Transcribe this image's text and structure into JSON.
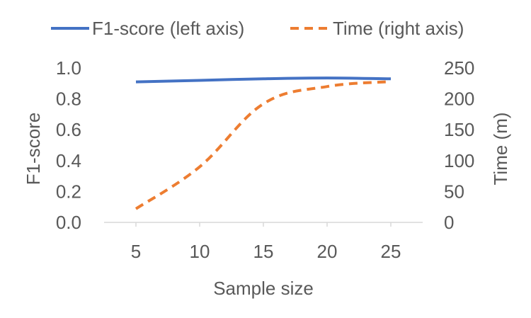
{
  "chart_data": {
    "type": "line",
    "title": "",
    "xlabel": "Sample size",
    "ylabel_left": "F1-score",
    "ylabel_right": "Time (m)",
    "x": [
      5,
      10,
      15,
      20,
      25
    ],
    "x_ticks": [
      "5",
      "10",
      "15",
      "20",
      "25"
    ],
    "xlim": [
      2.5,
      27.5
    ],
    "ylim_left": [
      0,
      1.0
    ],
    "ylim_right": [
      0,
      250
    ],
    "y_left_ticks": [
      0.0,
      0.2,
      0.4,
      0.6,
      0.8,
      1.0
    ],
    "y_left_tick_labels": [
      "0.0",
      "0.2",
      "0.4",
      "0.6",
      "0.8",
      "1.0"
    ],
    "y_right_ticks": [
      0,
      50,
      100,
      150,
      200,
      250
    ],
    "y_right_tick_labels": [
      "0",
      "50",
      "100",
      "150",
      "200",
      "250"
    ],
    "grid": false,
    "legend_position": "top",
    "series": [
      {
        "name": "F1-score (left axis)",
        "axis": "left",
        "values": [
          0.91,
          0.92,
          0.93,
          0.935,
          0.93
        ],
        "color": "#4472C4",
        "style": "solid"
      },
      {
        "name": "Time (right axis)",
        "axis": "right",
        "values": [
          22,
          90,
          192,
          220,
          228
        ],
        "color": "#ED7D31",
        "style": "dashed"
      }
    ]
  }
}
